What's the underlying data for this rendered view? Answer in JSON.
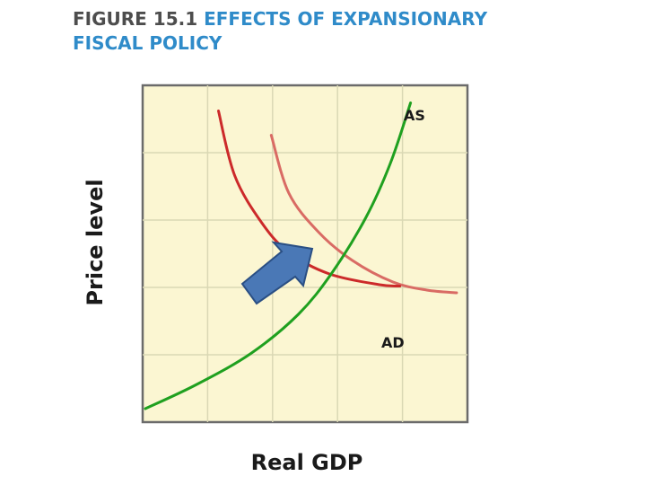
{
  "figure": {
    "number": "FIGURE 15.1",
    "title_line1": "EFFECTS OF EXPANSIONARY",
    "title_line2": "FISCAL POLICY"
  },
  "chart_data": {
    "type": "line",
    "xlabel": "Real GDP",
    "ylabel": "Price level",
    "grid": true,
    "background_color": "#fbf6d2",
    "grid_color": "#dad8b4",
    "series": [
      {
        "name": "AS",
        "color": "#1fa01f",
        "points": [
          [
            2,
            10
          ],
          [
            40,
            28
          ],
          [
            80,
            51
          ],
          [
            115,
            80
          ],
          [
            140,
            111
          ],
          [
            165,
            152
          ],
          [
            183,
            192
          ],
          [
            198,
            237
          ]
        ]
      },
      {
        "name": "AD",
        "color": "#cc2a2a",
        "points": [
          [
            56,
            231
          ],
          [
            68,
            183
          ],
          [
            88,
            148
          ],
          [
            108,
            126
          ],
          [
            138,
            110
          ],
          [
            175,
            102
          ],
          [
            190,
            101
          ]
        ]
      },
      {
        "name": "",
        "color": "#d96b64",
        "points": [
          [
            95,
            213
          ],
          [
            108,
            170
          ],
          [
            130,
            141
          ],
          [
            155,
            120
          ],
          [
            185,
            104
          ],
          [
            210,
            98
          ],
          [
            232,
            96
          ]
        ]
      }
    ],
    "annotations": [
      {
        "type": "arrow",
        "meaning": "rightward shift of AD",
        "color": "#4a78b6",
        "outline": "#2a4f84"
      }
    ]
  }
}
